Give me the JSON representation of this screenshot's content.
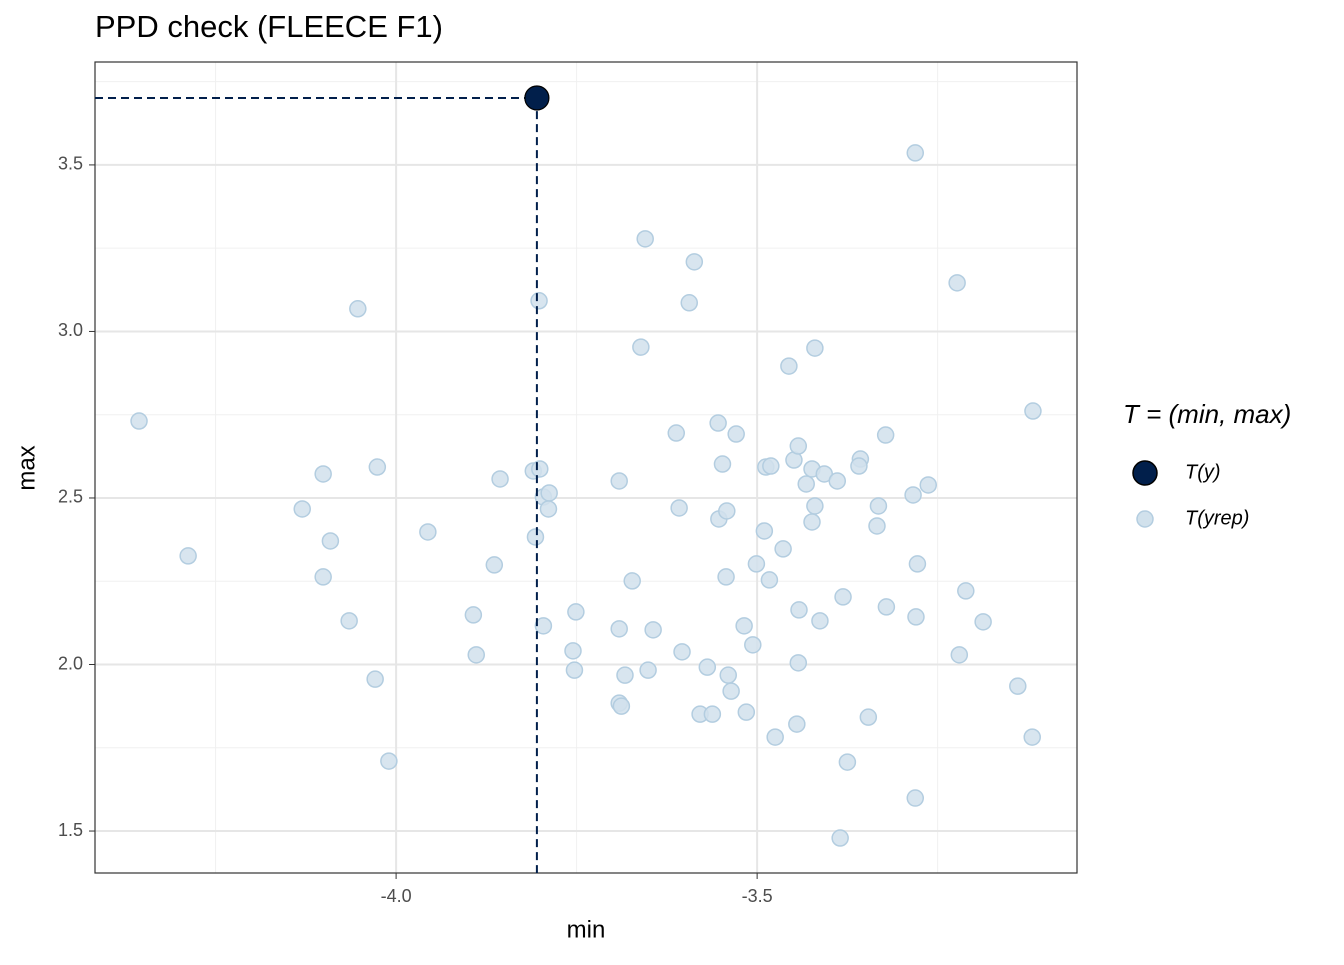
{
  "chart_data": {
    "type": "scatter",
    "title": "PPD check (FLEECE F1)",
    "x_label": "min",
    "y_label": "max",
    "legend_title": "T = (min, max)",
    "xlim": [
      -4.417,
      -3.057
    ],
    "ylim": [
      1.374,
      3.809
    ],
    "xticks": [
      {
        "value": -4.0,
        "label": "-4.0"
      },
      {
        "value": -3.5,
        "label": "-3.5"
      }
    ],
    "yticks": [
      {
        "value": 1.5,
        "label": "1.5"
      },
      {
        "value": 2.0,
        "label": "2.0"
      },
      {
        "value": 2.5,
        "label": "2.5"
      },
      {
        "value": 3.0,
        "label": "3.0"
      },
      {
        "value": 3.5,
        "label": "3.5"
      }
    ],
    "grid": true,
    "legend": "right",
    "series": [
      {
        "name": "T(y)",
        "color": "#011f4b",
        "x": [
          -3.805
        ],
        "values": [
          3.701
        ]
      },
      {
        "name": "T(yrep)",
        "color": "#d1e1ec",
        "x": [
          -4.356,
          -4.288,
          -4.13,
          -4.101,
          -4.091,
          -4.101,
          -4.065,
          -4.053,
          -4.026,
          -4.029,
          -4.01,
          -3.956,
          -3.893,
          -3.889,
          -3.864,
          -3.856,
          -3.81,
          -3.802,
          -3.801,
          -3.807,
          -3.796,
          -3.788,
          -3.789,
          -3.796,
          -3.751,
          -3.755,
          -3.753,
          -3.691,
          -3.691,
          -3.691,
          -3.688,
          -3.683,
          -3.673,
          -3.655,
          -3.661,
          -3.651,
          -3.644,
          -3.612,
          -3.608,
          -3.604,
          -3.594,
          -3.587,
          -3.579,
          -3.569,
          -3.562,
          -3.554,
          -3.548,
          -3.553,
          -3.542,
          -3.543,
          -3.54,
          -3.536,
          -3.529,
          -3.518,
          -3.515,
          -3.506,
          -3.501,
          -3.49,
          -3.488,
          -3.481,
          -3.483,
          -3.475,
          -3.464,
          -3.456,
          -3.449,
          -3.443,
          -3.442,
          -3.443,
          -3.445,
          -3.432,
          -3.424,
          -3.42,
          -3.42,
          -3.424,
          -3.413,
          -3.407,
          -3.389,
          -3.381,
          -3.375,
          -3.385,
          -3.357,
          -3.359,
          -3.346,
          -3.332,
          -3.334,
          -3.322,
          -3.321,
          -3.284,
          -3.281,
          -3.281,
          -3.278,
          -3.28,
          -3.263,
          -3.223,
          -3.22,
          -3.211,
          -3.187,
          -3.139,
          -3.119,
          -3.118
        ],
        "values": [
          2.731,
          2.326,
          2.467,
          2.572,
          2.371,
          2.263,
          2.131,
          3.068,
          2.593,
          1.956,
          1.71,
          2.398,
          2.149,
          2.029,
          2.299,
          2.557,
          2.581,
          3.092,
          2.587,
          2.383,
          2.503,
          2.515,
          2.467,
          2.116,
          2.158,
          2.041,
          1.983,
          2.551,
          2.107,
          1.884,
          1.875,
          1.968,
          2.251,
          3.278,
          2.953,
          1.983,
          2.104,
          2.695,
          2.47,
          2.038,
          3.086,
          3.209,
          1.851,
          1.992,
          1.851,
          2.725,
          2.602,
          2.437,
          2.461,
          2.263,
          1.968,
          1.92,
          2.692,
          2.116,
          1.857,
          2.059,
          2.302,
          2.401,
          2.593,
          2.596,
          2.254,
          1.782,
          2.347,
          2.896,
          2.614,
          2.656,
          2.164,
          2.005,
          1.821,
          2.542,
          2.587,
          2.95,
          2.476,
          2.428,
          2.131,
          2.572,
          2.551,
          2.203,
          1.707,
          1.479,
          2.617,
          2.596,
          1.842,
          2.476,
          2.416,
          2.689,
          2.173,
          2.509,
          1.599,
          3.536,
          2.302,
          2.143,
          2.539,
          3.146,
          2.029,
          2.221,
          2.128,
          1.935,
          1.782,
          2.761
        ]
      }
    ]
  }
}
